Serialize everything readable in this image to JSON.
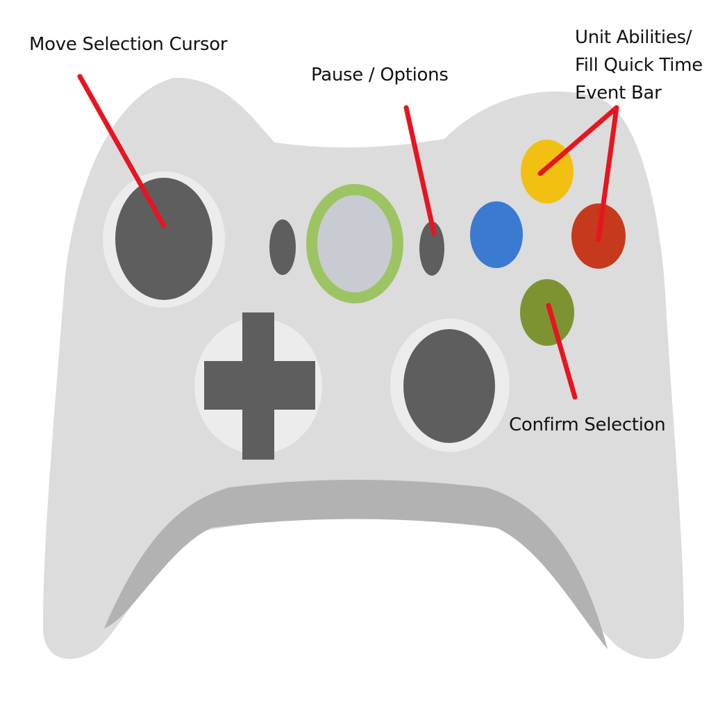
{
  "labels": {
    "move_cursor": "Move Selection Cursor",
    "pause_options": "Pause / Options",
    "unit_abilities": [
      "Unit Abilities/",
      "Fill Quick Time",
      "Event Bar"
    ],
    "confirm": "Confirm Selection"
  },
  "colors": {
    "controller_body": "#dcdcdc",
    "controller_shadow": "#b2b2b2",
    "well": "#ececec",
    "stick": "#5e5e5e",
    "guide_ring": "#9dc463",
    "guide_center": "#c8ccd2",
    "button_x": "#3a7ad0",
    "button_y": "#f2c011",
    "button_b": "#c7391c",
    "button_a": "#7d9331",
    "callout_line": "#e8141f"
  },
  "icons": {
    "left_stick": "left-thumbstick-icon",
    "right_stick": "right-thumbstick-icon",
    "dpad": "dpad-icon",
    "guide": "guide-button-icon"
  }
}
